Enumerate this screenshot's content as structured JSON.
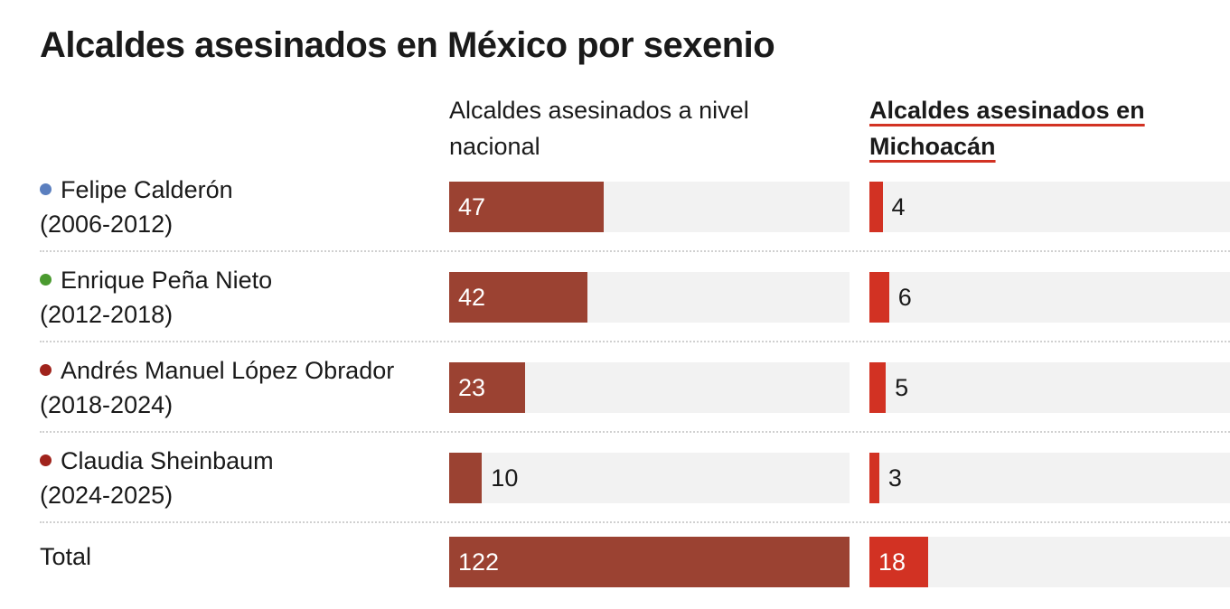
{
  "title": "Alcaldes asesinados en México por sexenio",
  "chart_data": {
    "type": "bar",
    "orientation": "horizontal",
    "title": "Alcaldes asesinados en México por sexenio",
    "categories": [
      {
        "name": "Felipe Calderón",
        "period": "(2006-2012)",
        "dot_color": "#5b7fbf"
      },
      {
        "name": "Enrique Peña Nieto",
        "period": "(2012-2018)",
        "dot_color": "#4a9a2f"
      },
      {
        "name": "Andrés Manuel López Obrador",
        "period": "(2018-2024)",
        "dot_color": "#a0231c"
      },
      {
        "name": "Claudia Sheinbaum",
        "period": "(2024-2025)",
        "dot_color": "#a0231c"
      },
      {
        "name": "Total",
        "period": "",
        "dot_color": ""
      }
    ],
    "series": [
      {
        "name": "Alcaldes asesinados a nivel nacional",
        "color": "#9b4232",
        "values": [
          47,
          42,
          23,
          10,
          122
        ]
      },
      {
        "name_line1": "Alcaldes asesinados en",
        "name_line2": "Michoacán",
        "color": "#d23223",
        "values": [
          4,
          6,
          5,
          3,
          18
        ]
      }
    ],
    "xlim": [
      0,
      122
    ]
  }
}
